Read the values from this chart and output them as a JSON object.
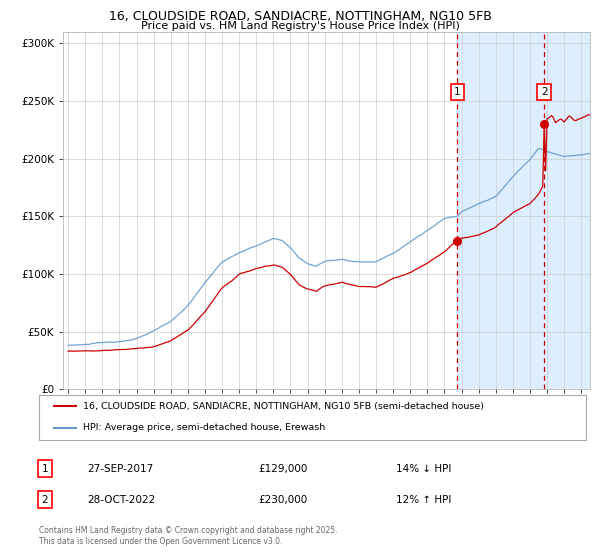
{
  "title_line1": "16, CLOUDSIDE ROAD, SANDIACRE, NOTTINGHAM, NG10 5FB",
  "title_line2": "Price paid vs. HM Land Registry's House Price Index (HPI)",
  "legend_label_red": "16, CLOUDSIDE ROAD, SANDIACRE, NOTTINGHAM, NG10 5FB (semi-detached house)",
  "legend_label_blue": "HPI: Average price, semi-detached house, Erewash",
  "annotation1_date": "27-SEP-2017",
  "annotation1_price": "£129,000",
  "annotation1_hpi": "14% ↓ HPI",
  "annotation1_year": 2017.75,
  "annotation1_value": 129000,
  "annotation2_date": "28-OCT-2022",
  "annotation2_price": "£230,000",
  "annotation2_hpi": "12% ↑ HPI",
  "annotation2_year": 2022.83,
  "annotation2_value": 230000,
  "footer": "Contains HM Land Registry data © Crown copyright and database right 2025.\nThis data is licensed under the Open Government Licence v3.0.",
  "red_color": "#cc0000",
  "blue_color": "#6699cc",
  "highlight_bg": "#ddeeff",
  "grid_color": "#cccccc",
  "ylim": [
    0,
    310000
  ],
  "yticks": [
    0,
    50000,
    100000,
    150000,
    200000,
    250000,
    300000
  ],
  "xlim_start": 1994.7,
  "xlim_end": 2025.5,
  "highlight_start": 2017.75,
  "highlight_end": 2025.5
}
